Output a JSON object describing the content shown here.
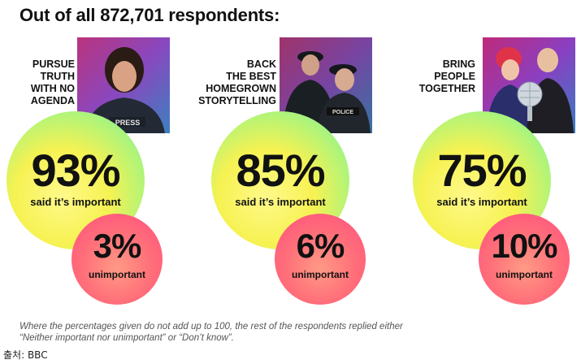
{
  "title": "Out of all 872,701 respondents:",
  "columns": [
    {
      "headline_lines": [
        "PURSUE",
        "TRUTH",
        "WITH NO",
        "AGENDA"
      ],
      "important_pct": "93%",
      "important_label": "said it’s important",
      "unimportant_pct": "3%",
      "unimportant_label": "unimportant",
      "photo_icon": "journalist-photo"
    },
    {
      "headline_lines": [
        "BACK",
        "THE BEST",
        "HOMEGROWN",
        "STORYTELLING"
      ],
      "important_pct": "85%",
      "important_label": "said it’s important",
      "unimportant_pct": "6%",
      "unimportant_label": "unimportant",
      "photo_icon": "police-drama-photo"
    },
    {
      "headline_lines": [
        "BRING",
        "PEOPLE",
        "TOGETHER"
      ],
      "important_pct": "75%",
      "important_label": "said it’s important",
      "unimportant_pct": "10%",
      "unimportant_label": "unimportant",
      "photo_icon": "dance-show-photo"
    }
  ],
  "footnote_lines": [
    "Where the percentages given do not add up to 100, the rest of the respondents replied either",
    "“Neither important nor unimportant” or “Don’t know”."
  ],
  "source": "출처:  BBC",
  "colors": {
    "important_circle": "#f6f252",
    "unimportant_circle": "#ff6e79",
    "photo_gradient": [
      "#ff2e9a",
      "#b44dff",
      "#3fa3ff"
    ]
  }
}
